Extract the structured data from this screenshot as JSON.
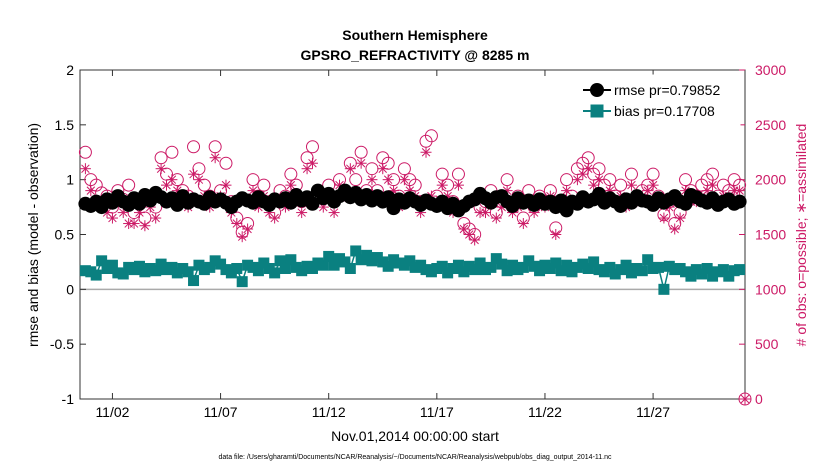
{
  "chart_data": {
    "type": "scatter",
    "title": "Southern Hemisphere",
    "subtitle": "GPSRO_REFRACTIVITY @ 8285 m",
    "xlabel": "Nov.01,2014 00:00:00 start",
    "ylabel_left": "rmse and bias (model - observation)",
    "ylabel_right": "# of obs: o=possible; ∗=assimilated",
    "footnote": "data file: /Users/gharamti/Documents/NCAR/Reanalysis/~/Documents/NCAR/Reanalysis/webpub/obs_diag_output_2014-11.nc",
    "xlim": [
      0.5,
      31.25
    ],
    "ylim_left": [
      -1,
      2
    ],
    "ylim_right": [
      0,
      3000
    ],
    "x_ticks": [
      {
        "value": 2,
        "label": "11/02"
      },
      {
        "value": 7,
        "label": "11/07"
      },
      {
        "value": 12,
        "label": "11/12"
      },
      {
        "value": 17,
        "label": "11/17"
      },
      {
        "value": 22,
        "label": "11/22"
      },
      {
        "value": 27,
        "label": "11/27"
      }
    ],
    "y_ticks_left": [
      {
        "value": 2,
        "label": "2"
      },
      {
        "value": 1.5,
        "label": "1.5"
      },
      {
        "value": 1,
        "label": "1"
      },
      {
        "value": 0.5,
        "label": "0.5"
      },
      {
        "value": 0,
        "label": "0"
      },
      {
        "value": -0.5,
        "label": "-0.5"
      },
      {
        "value": -1,
        "label": "-1"
      }
    ],
    "y_ticks_right": [
      {
        "value": 3000,
        "label": "3000"
      },
      {
        "value": 2500,
        "label": "2500"
      },
      {
        "value": 2000,
        "label": "2000"
      },
      {
        "value": 1500,
        "label": "1500"
      },
      {
        "value": 1000,
        "label": "1000"
      },
      {
        "value": 500,
        "label": "500"
      },
      {
        "value": 0,
        "label": "0"
      }
    ],
    "legend": {
      "placement": "top-right",
      "entries": [
        {
          "name": "rmse pr=0.79852",
          "series": "rmse"
        },
        {
          "name": "bias pr=0.17708",
          "series": "bias"
        }
      ]
    },
    "colors": {
      "rmse": "#000000",
      "bias": "#0a8080",
      "obs": "#cc1a66",
      "zero_line": "#aaaaaa",
      "axis": "#333333"
    },
    "series": [
      {
        "name": "rmse",
        "axis": "left",
        "marker": "circle-line",
        "x": [
          0.75,
          1,
          1.25,
          1.5,
          1.75,
          2,
          2.25,
          2.5,
          2.75,
          3,
          3.25,
          3.5,
          3.75,
          4,
          4.25,
          4.5,
          4.75,
          5,
          5.25,
          5.5,
          5.75,
          6,
          6.25,
          6.5,
          6.75,
          7,
          7.25,
          7.5,
          7.75,
          8,
          8.25,
          8.5,
          8.75,
          9,
          9.25,
          9.5,
          9.75,
          10,
          10.25,
          10.5,
          10.75,
          11,
          11.25,
          11.5,
          11.75,
          12,
          12.25,
          12.5,
          12.75,
          13,
          13.25,
          13.5,
          13.75,
          14,
          14.25,
          14.5,
          14.75,
          15,
          15.25,
          15.5,
          15.75,
          16,
          16.25,
          16.5,
          16.75,
          17,
          17.25,
          17.5,
          17.75,
          18,
          18.25,
          18.5,
          18.75,
          19,
          19.25,
          19.5,
          19.75,
          20,
          20.25,
          20.5,
          20.75,
          21,
          21.25,
          21.5,
          21.75,
          22,
          22.25,
          22.5,
          22.75,
          23,
          23.25,
          23.5,
          23.75,
          24,
          24.25,
          24.5,
          24.75,
          25,
          25.25,
          25.5,
          25.75,
          26,
          26.25,
          26.5,
          26.75,
          27,
          27.25,
          27.5,
          27.75,
          28,
          28.25,
          28.5,
          28.75,
          29,
          29.25,
          29.5,
          29.75,
          30,
          30.25,
          30.5,
          30.75,
          31
        ],
        "values": [
          0.78,
          0.76,
          0.8,
          0.75,
          0.82,
          0.79,
          0.85,
          0.8,
          0.77,
          0.83,
          0.78,
          0.86,
          0.81,
          0.88,
          0.84,
          0.8,
          0.83,
          0.77,
          0.85,
          0.79,
          0.82,
          0.8,
          0.78,
          0.84,
          0.8,
          0.82,
          0.79,
          0.75,
          0.8,
          0.83,
          0.81,
          0.79,
          0.84,
          0.8,
          0.77,
          0.82,
          0.8,
          0.83,
          0.79,
          0.86,
          0.81,
          0.84,
          0.78,
          0.9,
          0.83,
          0.87,
          0.8,
          0.85,
          0.9,
          0.84,
          0.88,
          0.82,
          0.86,
          0.81,
          0.85,
          0.8,
          0.84,
          0.74,
          0.82,
          0.79,
          0.83,
          0.8,
          0.77,
          0.81,
          0.78,
          0.76,
          0.8,
          0.74,
          0.78,
          0.72,
          0.76,
          0.8,
          0.82,
          0.87,
          0.83,
          0.79,
          0.84,
          0.85,
          0.8,
          0.76,
          0.83,
          0.79,
          0.81,
          0.77,
          0.82,
          0.78,
          0.8,
          0.75,
          0.81,
          0.72,
          0.8,
          0.78,
          0.84,
          0.8,
          0.82,
          0.87,
          0.79,
          0.83,
          0.8,
          0.76,
          0.82,
          0.79,
          0.85,
          0.81,
          0.8,
          0.77,
          0.83,
          0.79,
          0.82,
          0.85,
          0.8,
          0.78,
          0.86,
          0.84,
          0.81,
          0.79,
          0.83,
          0.77,
          0.8,
          0.82,
          0.78,
          0.8
        ]
      },
      {
        "name": "bias",
        "axis": "left",
        "marker": "square-line",
        "x": [
          0.75,
          1,
          1.25,
          1.5,
          1.75,
          2,
          2.25,
          2.5,
          2.75,
          3,
          3.25,
          3.5,
          3.75,
          4,
          4.25,
          4.5,
          4.75,
          5,
          5.25,
          5.5,
          5.75,
          6,
          6.25,
          6.5,
          6.75,
          7,
          7.25,
          7.5,
          7.75,
          8,
          8.25,
          8.5,
          8.75,
          9,
          9.25,
          9.5,
          9.75,
          10,
          10.25,
          10.5,
          10.75,
          11,
          11.25,
          11.5,
          11.75,
          12,
          12.25,
          12.5,
          12.75,
          13,
          13.25,
          13.5,
          13.75,
          14,
          14.25,
          14.5,
          14.75,
          15,
          15.25,
          15.5,
          15.75,
          16,
          16.25,
          16.5,
          16.75,
          17,
          17.25,
          17.5,
          17.75,
          18,
          18.25,
          18.5,
          18.75,
          19,
          19.25,
          19.5,
          19.75,
          20,
          20.25,
          20.5,
          20.75,
          21,
          21.25,
          21.5,
          21.75,
          22,
          22.25,
          22.5,
          22.75,
          23,
          23.25,
          23.5,
          23.75,
          24,
          24.25,
          24.5,
          24.75,
          25,
          25.25,
          25.5,
          25.75,
          26,
          26.25,
          26.5,
          26.75,
          27,
          27.25,
          27.5,
          27.75,
          28,
          28.25,
          28.5,
          28.75,
          29,
          29.25,
          29.5,
          29.75,
          30,
          30.25,
          30.5,
          30.75,
          31
        ],
        "values": [
          0.17,
          0.16,
          0.13,
          0.26,
          0.19,
          0.22,
          0.15,
          0.14,
          0.2,
          0.18,
          0.21,
          0.16,
          0.19,
          0.17,
          0.23,
          0.18,
          0.2,
          0.15,
          0.19,
          0.16,
          0.08,
          0.22,
          0.18,
          0.2,
          0.26,
          0.23,
          0.18,
          0.15,
          0.19,
          0.07,
          0.22,
          0.2,
          0.17,
          0.24,
          0.19,
          0.15,
          0.26,
          0.19,
          0.27,
          0.2,
          0.17,
          0.21,
          0.19,
          0.24,
          0.22,
          0.3,
          0.22,
          0.28,
          0.25,
          0.19,
          0.35,
          0.27,
          0.31,
          0.26,
          0.29,
          0.25,
          0.21,
          0.27,
          0.24,
          0.22,
          0.26,
          0.2,
          0.22,
          0.18,
          0.16,
          0.19,
          0.21,
          0.15,
          0.19,
          0.22,
          0.16,
          0.21,
          0.18,
          0.24,
          0.18,
          0.2,
          0.28,
          0.23,
          0.17,
          0.22,
          0.18,
          0.2,
          0.26,
          0.21,
          0.17,
          0.22,
          0.19,
          0.24,
          0.17,
          0.22,
          0.16,
          0.2,
          0.23,
          0.19,
          0.25,
          0.18,
          0.16,
          0.2,
          0.14,
          0.18,
          0.22,
          0.15,
          0.19,
          0.17,
          0.27,
          0.19,
          0.2,
          0.0,
          0.21,
          0.18,
          0.19,
          0.16,
          0.12,
          0.18,
          0.14,
          0.19,
          0.12,
          0.16,
          0.18,
          0.12,
          0.17,
          0.18
        ]
      },
      {
        "name": "possible",
        "axis": "right",
        "marker": "open-circle",
        "x": [
          0.75,
          1,
          1.25,
          1.5,
          1.75,
          2,
          2.25,
          2.5,
          2.75,
          3,
          3.25,
          3.5,
          3.75,
          4,
          4.25,
          4.5,
          4.75,
          5,
          5.25,
          5.5,
          5.75,
          6,
          6.25,
          6.5,
          6.75,
          7,
          7.25,
          7.5,
          7.75,
          8,
          8.25,
          8.5,
          8.75,
          9,
          9.25,
          9.5,
          9.75,
          10,
          10.25,
          10.5,
          10.75,
          11,
          11.25,
          11.5,
          11.75,
          12,
          12.25,
          12.5,
          12.75,
          13,
          13.25,
          13.5,
          13.75,
          14,
          14.25,
          14.5,
          14.75,
          15,
          15.25,
          15.5,
          15.75,
          16,
          16.25,
          16.5,
          16.75,
          17,
          17.25,
          17.5,
          17.75,
          18,
          18.25,
          18.5,
          18.75,
          19,
          19.25,
          19.5,
          19.75,
          20,
          20.25,
          20.5,
          20.75,
          21,
          21.25,
          21.5,
          21.75,
          22,
          22.25,
          22.5,
          22.75,
          23,
          23.25,
          23.5,
          23.75,
          24,
          24.25,
          24.5,
          24.75,
          25,
          25.25,
          25.5,
          25.75,
          26,
          26.25,
          26.5,
          26.75,
          27,
          27.25,
          27.5,
          27.75,
          28,
          28.25,
          28.5,
          28.75,
          29,
          29.25,
          29.5,
          29.75,
          30,
          30.25,
          30.5,
          30.75,
          31
        ],
        "values": [
          2250,
          2000,
          1950,
          1880,
          1850,
          1750,
          1900,
          1820,
          1950,
          1700,
          1800,
          1650,
          1850,
          1750,
          2200,
          2050,
          2250,
          2000,
          1900,
          1850,
          2300,
          2100,
          1950,
          1850,
          2300,
          1900,
          2150,
          1800,
          1650,
          1520,
          1600,
          2000,
          1850,
          1950,
          1800,
          1700,
          1900,
          1850,
          2050,
          1950,
          1800,
          2200,
          2300,
          1900,
          1850,
          1950,
          1800,
          2000,
          1900,
          2150,
          2000,
          2250,
          1900,
          2100,
          1900,
          2200,
          2150,
          2000,
          1850,
          2100,
          2000,
          1950,
          1800,
          2350,
          2400,
          1850,
          2050,
          1950,
          1800,
          2050,
          1600,
          1550,
          1500,
          1750,
          1800,
          1900,
          1700,
          1800,
          2000,
          1750,
          1850,
          1650,
          1900,
          1750,
          1850,
          1800,
          1900,
          1560,
          1800,
          2000,
          1850,
          2100,
          2150,
          2200,
          2050,
          2100,
          1950,
          2000,
          1850,
          1950,
          1800,
          2050,
          1850,
          1900,
          1950,
          2050,
          1850,
          1680,
          1800,
          1600,
          1700,
          2000,
          1900,
          1850,
          1950,
          2000,
          2050,
          1850,
          1950,
          1900,
          2000,
          1950
        ]
      },
      {
        "name": "assimilated",
        "axis": "right",
        "marker": "asterisk",
        "x": [
          0.75,
          1,
          1.25,
          1.5,
          1.75,
          2,
          2.25,
          2.5,
          2.75,
          3,
          3.25,
          3.5,
          3.75,
          4,
          4.25,
          4.5,
          4.75,
          5,
          5.25,
          5.5,
          5.75,
          6,
          6.25,
          6.5,
          6.75,
          7,
          7.25,
          7.5,
          7.75,
          8,
          8.25,
          8.5,
          8.75,
          9,
          9.25,
          9.5,
          9.75,
          10,
          10.25,
          10.5,
          10.75,
          11,
          11.25,
          11.5,
          11.75,
          12,
          12.25,
          12.5,
          12.75,
          13,
          13.25,
          13.5,
          13.75,
          14,
          14.25,
          14.5,
          14.75,
          15,
          15.25,
          15.5,
          15.75,
          16,
          16.25,
          16.5,
          16.75,
          17,
          17.25,
          17.5,
          17.75,
          18,
          18.25,
          18.5,
          18.75,
          19,
          19.25,
          19.5,
          19.75,
          20,
          20.25,
          20.5,
          20.75,
          21,
          21.25,
          21.5,
          21.75,
          22,
          22.25,
          22.5,
          22.75,
          23,
          23.25,
          23.5,
          23.75,
          24,
          24.25,
          24.5,
          24.75,
          25,
          25.25,
          25.5,
          25.75,
          26,
          26.25,
          26.5,
          26.75,
          27,
          27.25,
          27.5,
          27.75,
          28,
          28.25,
          28.5,
          28.75,
          29,
          29.25,
          29.5,
          29.75,
          30,
          30.25,
          30.5,
          30.75,
          31
        ],
        "values": [
          2100,
          1900,
          1800,
          1750,
          1700,
          1650,
          1800,
          1700,
          1600,
          1600,
          1700,
          1580,
          1750,
          1650,
          2100,
          1950,
          2000,
          1900,
          1800,
          1750,
          2050,
          2000,
          1850,
          1750,
          2200,
          1850,
          1950,
          1700,
          1600,
          1480,
          1550,
          1900,
          1750,
          1850,
          1700,
          1650,
          1800,
          1750,
          1950,
          1850,
          1700,
          2100,
          2150,
          1800,
          1750,
          1850,
          1700,
          1950,
          1850,
          2100,
          1900,
          2150,
          1850,
          2000,
          1850,
          2100,
          2000,
          1900,
          1750,
          2000,
          1900,
          1850,
          1700,
          2250,
          1850,
          1800,
          1950,
          1850,
          1700,
          1950,
          1550,
          1500,
          1450,
          1700,
          1700,
          1800,
          1650,
          1750,
          1900,
          1700,
          1750,
          1600,
          1800,
          1700,
          1800,
          1750,
          1850,
          1500,
          1750,
          1900,
          1800,
          2000,
          2050,
          2100,
          1950,
          2000,
          1850,
          1900,
          1800,
          1850,
          1750,
          1950,
          1800,
          1850,
          1900,
          1950,
          1800,
          1650,
          1750,
          1550,
          1650,
          1900,
          1800,
          1800,
          1850,
          1900,
          1950,
          1800,
          1850,
          1850,
          1900,
          1900
        ]
      }
    ]
  }
}
